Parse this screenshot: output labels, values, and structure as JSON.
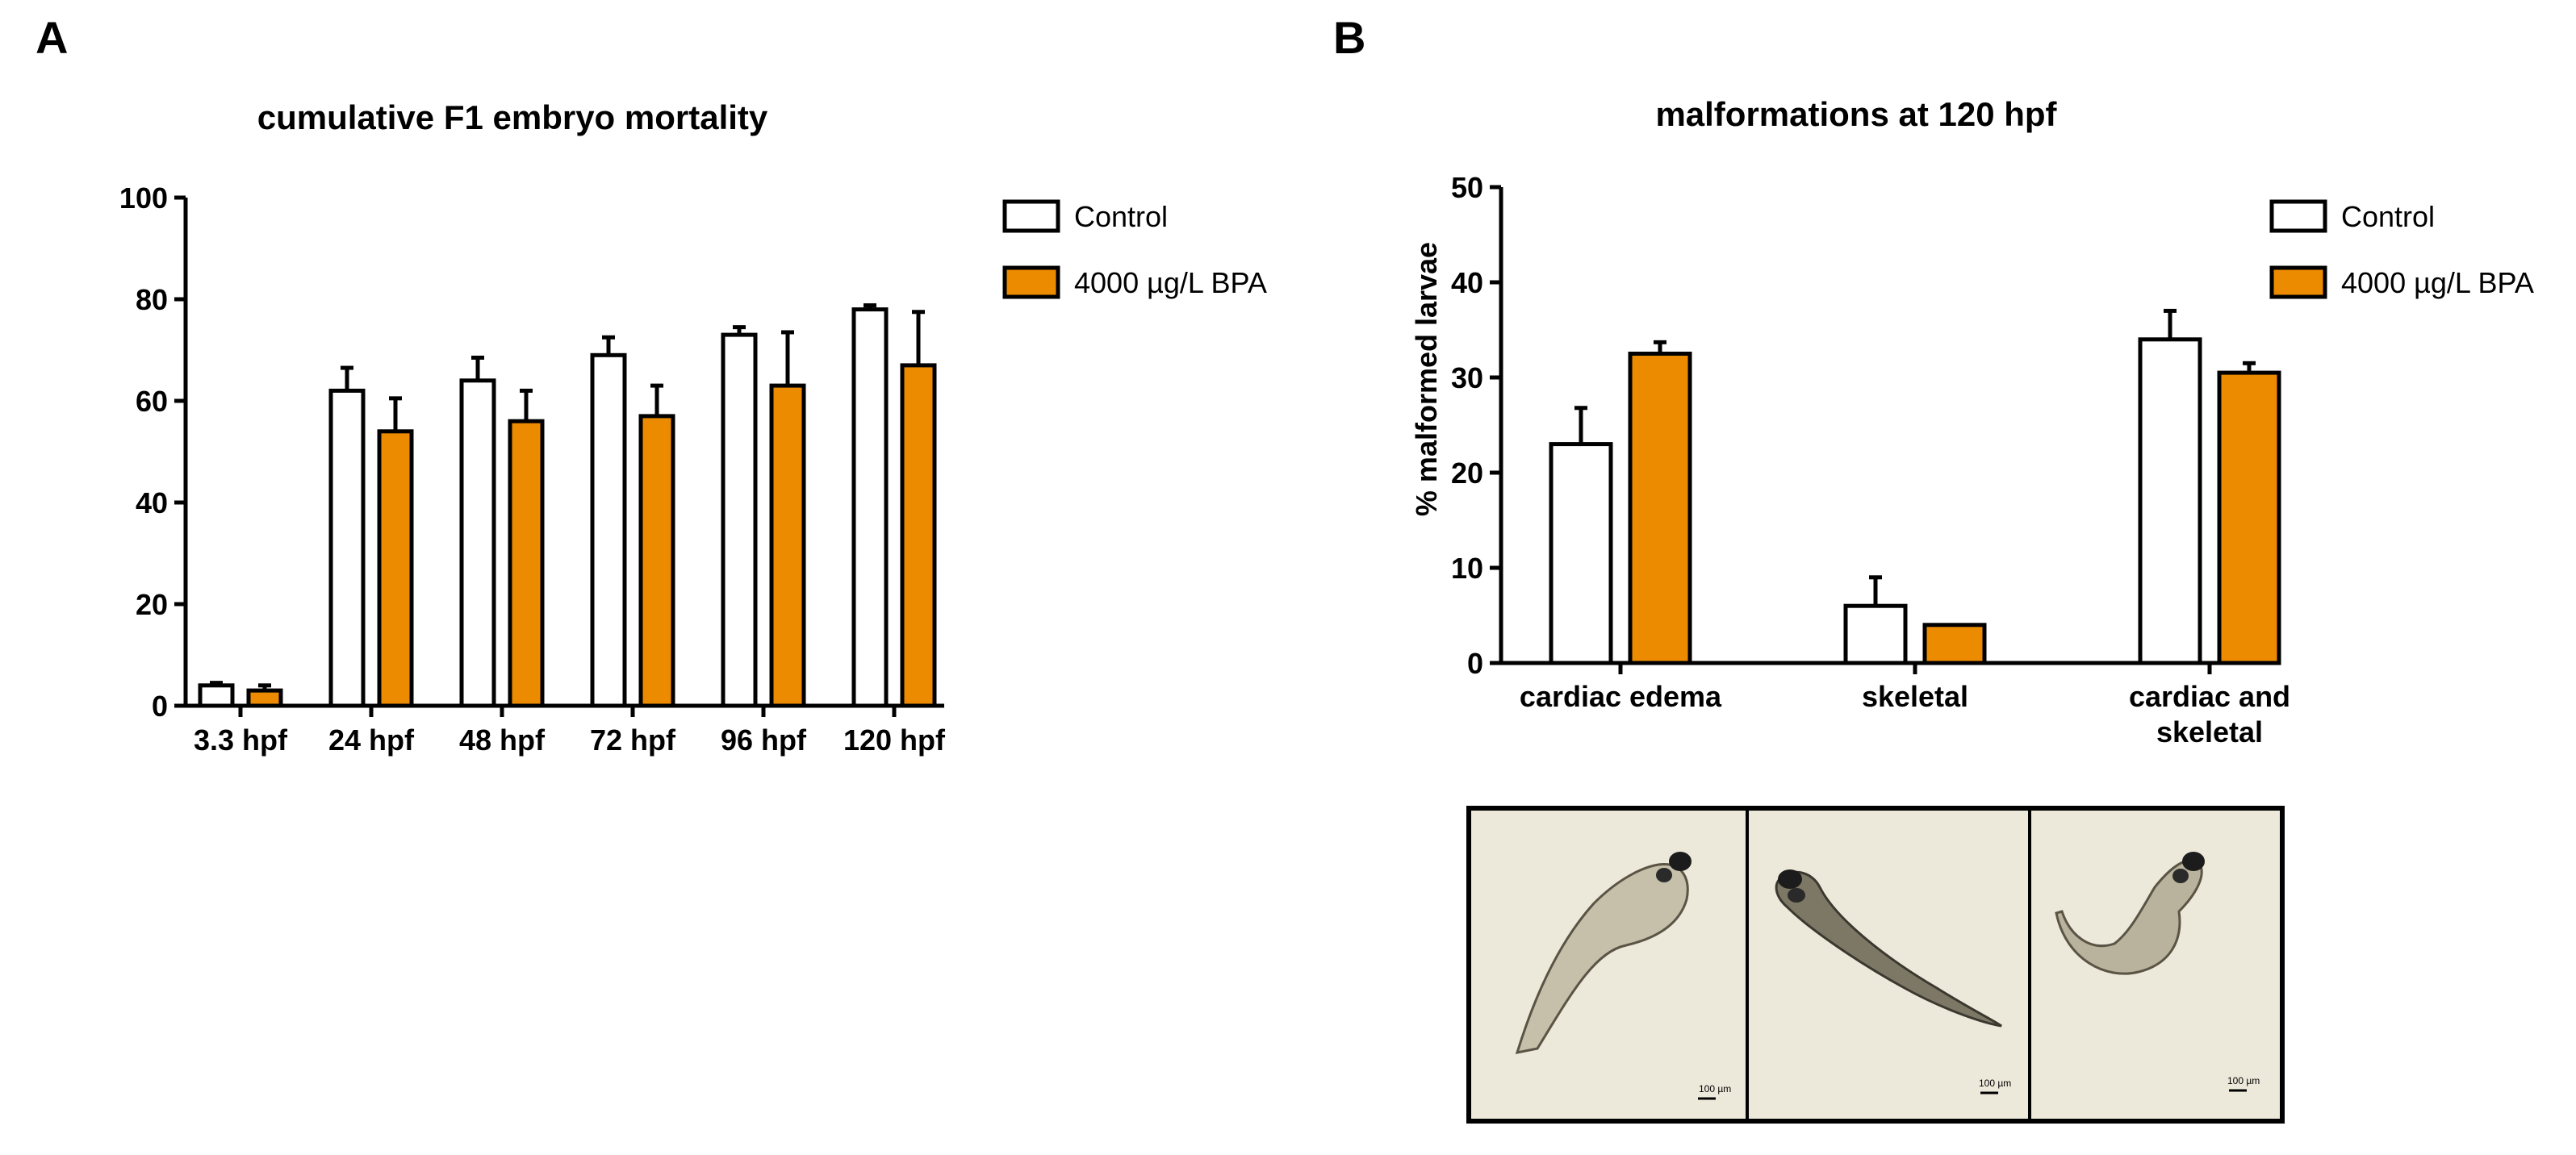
{
  "panel_a": {
    "letter": "A"
  },
  "panel_b": {
    "letter": "B",
    "images": [
      {
        "name": "larva-cardiac-edema",
        "scale_label": "100 µm"
      },
      {
        "name": "larva-skeletal",
        "scale_label": "100 µm"
      },
      {
        "name": "larva-cardiac-and-skeletal",
        "scale_label": "100 µm"
      }
    ]
  },
  "chart_data": [
    {
      "type": "bar",
      "title": "cumulative F1 embryo mortality",
      "xlabel": "",
      "ylabel": "",
      "ylim": [
        0,
        100
      ],
      "yticks": [
        0,
        20,
        40,
        60,
        80,
        100
      ],
      "categories": [
        "3.3 hpf",
        "24 hpf",
        "48 hpf",
        "72 hpf",
        "96 hpf",
        "120 hpf"
      ],
      "series": [
        {
          "name": "Control",
          "color": "#ffffff",
          "values": [
            4,
            62,
            64,
            69,
            73,
            78
          ],
          "errors": [
            0.5,
            4.5,
            4.5,
            3.5,
            1.5,
            0.8
          ]
        },
        {
          "name": "4000 µg/L BPA",
          "color": "#ed8b00",
          "values": [
            3,
            54,
            56,
            57,
            63,
            67
          ],
          "errors": [
            1,
            6.5,
            6,
            6,
            10.5,
            10.5
          ]
        }
      ],
      "legend": "top-right"
    },
    {
      "type": "bar",
      "title": "malformations at 120 hpf",
      "xlabel": "",
      "ylabel": "% malformed larvae",
      "ylim": [
        0,
        50
      ],
      "yticks": [
        0,
        10,
        20,
        30,
        40,
        50
      ],
      "categories": [
        "cardiac edema",
        "skeletal",
        "cardiac and skeletal"
      ],
      "series": [
        {
          "name": "Control",
          "color": "#ffffff",
          "values": [
            23,
            6,
            34
          ],
          "errors": [
            3.8,
            3,
            3
          ]
        },
        {
          "name": "4000 µg/L BPA",
          "color": "#ed8b00",
          "values": [
            32.5,
            4,
            30.5
          ],
          "errors": [
            1.2,
            0,
            1
          ]
        }
      ],
      "legend": "top-right"
    }
  ]
}
